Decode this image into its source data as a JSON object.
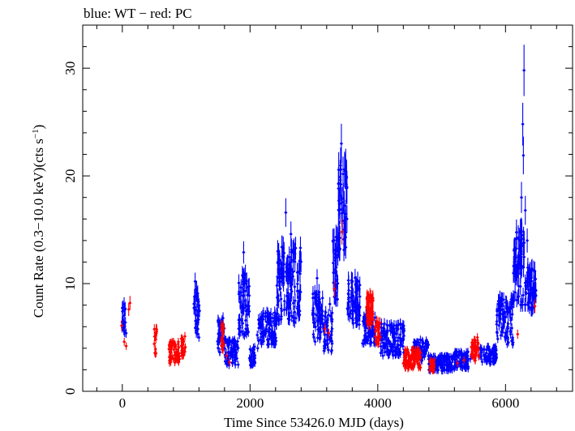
{
  "chart_data": {
    "type": "scatter",
    "title": "blue: WT − red: PC",
    "xlabel": "Time Since 53426.0 MJD (days)",
    "ylabel": "Count Rate (0.3−10.0 keV)(cts s",
    "ylabel_superscript": "−1",
    "ylabel_suffix": ")",
    "xlim": [
      -620,
      7050
    ],
    "ylim": [
      0,
      34
    ],
    "xticks": [
      0,
      2000,
      4000,
      6000
    ],
    "xtick_labels": [
      "0",
      "2000",
      "4000",
      "6000"
    ],
    "yticks": [
      0,
      10,
      20,
      30
    ],
    "ytick_labels": [
      "0",
      "10",
      "20",
      "30"
    ],
    "grid": false,
    "legend": "none (series identified in title text)",
    "series": [
      {
        "name": "WT",
        "color": "#0000ff",
        "points": [
          [
            0,
            6.5
          ],
          [
            10,
            7.8
          ],
          [
            20,
            6.2
          ],
          [
            60,
            5.4
          ],
          [
            1130,
            8.8
          ],
          [
            1140,
            10.2
          ],
          [
            1160,
            5.6
          ],
          [
            1200,
            5.0
          ],
          [
            1500,
            4.6
          ],
          [
            1530,
            5.8
          ],
          [
            1600,
            4.9
          ],
          [
            1700,
            3.5
          ],
          [
            1760,
            3.4
          ],
          [
            1830,
            5.3
          ],
          [
            1890,
            10.6
          ],
          [
            1900,
            12.9
          ],
          [
            1920,
            9.3
          ],
          [
            1960,
            7.6
          ],
          [
            2000,
            2.9
          ],
          [
            2120,
            4.0
          ],
          [
            2200,
            5.5
          ],
          [
            2300,
            6.6
          ],
          [
            2380,
            4.7
          ],
          [
            2470,
            10.5
          ],
          [
            2520,
            13.3
          ],
          [
            2560,
            16.6
          ],
          [
            2610,
            11.0
          ],
          [
            2640,
            14.6
          ],
          [
            2700,
            9.7
          ],
          [
            2760,
            7.0
          ],
          [
            3000,
            6.4
          ],
          [
            3050,
            10.5
          ],
          [
            3080,
            8.5
          ],
          [
            3110,
            5.5
          ],
          [
            3160,
            4.2
          ],
          [
            3250,
            8.1
          ],
          [
            3300,
            13.9
          ],
          [
            3350,
            11.5
          ],
          [
            3390,
            17.7
          ],
          [
            3410,
            19.9
          ],
          [
            3430,
            23.0
          ],
          [
            3460,
            17.9
          ],
          [
            3480,
            20.6
          ],
          [
            3500,
            16.0
          ],
          [
            3540,
            10.3
          ],
          [
            3580,
            8.7
          ],
          [
            3650,
            7.9
          ],
          [
            3710,
            6.2
          ],
          [
            3830,
            6.3
          ],
          [
            3920,
            6.0
          ],
          [
            4100,
            5.8
          ],
          [
            4200,
            3.8
          ],
          [
            4300,
            3.9
          ],
          [
            4400,
            5.1
          ],
          [
            4600,
            4.0
          ],
          [
            4700,
            4.5
          ],
          [
            4850,
            2.6
          ],
          [
            4950,
            2.5
          ],
          [
            5050,
            2.5
          ],
          [
            5150,
            2.4
          ],
          [
            5200,
            3.4
          ],
          [
            5320,
            2.7
          ],
          [
            5450,
            3.0
          ],
          [
            5600,
            3.3
          ],
          [
            5750,
            3.3
          ],
          [
            5820,
            3.8
          ],
          [
            5900,
            6.1
          ],
          [
            5950,
            8.5
          ],
          [
            6020,
            7.4
          ],
          [
            6080,
            5.3
          ],
          [
            6150,
            9.2
          ],
          [
            6200,
            11.9
          ],
          [
            6230,
            13.0
          ],
          [
            6250,
            18.0
          ],
          [
            6270,
            24.8
          ],
          [
            6280,
            21.9
          ],
          [
            6290,
            29.8
          ],
          [
            6310,
            16.8
          ],
          [
            6340,
            14.0
          ],
          [
            6380,
            11.1
          ],
          [
            6420,
            9.0
          ],
          [
            6460,
            9.4
          ]
        ]
      },
      {
        "name": "PC",
        "color": "#ff0000",
        "points": [
          [
            -10,
            6.1
          ],
          [
            30,
            4.6
          ],
          [
            60,
            4.2
          ],
          [
            100,
            7.6
          ],
          [
            120,
            8.2
          ],
          [
            500,
            4.4
          ],
          [
            520,
            5.2
          ],
          [
            530,
            5.8
          ],
          [
            750,
            3.6
          ],
          [
            800,
            4.6
          ],
          [
            850,
            3.0
          ],
          [
            880,
            2.8
          ],
          [
            950,
            4.0
          ],
          [
            980,
            5.1
          ],
          [
            1560,
            5.8
          ],
          [
            1590,
            4.4
          ],
          [
            1630,
            3.3
          ],
          [
            1680,
            2.7
          ],
          [
            3170,
            5.8
          ],
          [
            3230,
            5.4
          ],
          [
            3320,
            9.5
          ],
          [
            3440,
            14.8
          ],
          [
            3840,
            8.5
          ],
          [
            3870,
            6.8
          ],
          [
            3920,
            7.4
          ],
          [
            4000,
            5.7
          ],
          [
            4420,
            3.4
          ],
          [
            4470,
            2.6
          ],
          [
            4520,
            2.9
          ],
          [
            4560,
            3.8
          ],
          [
            4600,
            3.4
          ],
          [
            4640,
            2.2
          ],
          [
            4660,
            3.2
          ],
          [
            4820,
            2.3
          ],
          [
            4880,
            2.5
          ],
          [
            5250,
            2.6
          ],
          [
            5350,
            2.9
          ],
          [
            5480,
            3.4
          ],
          [
            5530,
            4.2
          ],
          [
            5560,
            5.0
          ],
          [
            6190,
            5.3
          ],
          [
            6460,
            7.9
          ]
        ]
      }
    ],
    "dense_segments": [
      {
        "series": "WT",
        "x0": -10,
        "x1": 50,
        "center": 6.5,
        "spread": 1.6
      },
      {
        "series": "WT",
        "x0": 1120,
        "x1": 1210,
        "center": 7.5,
        "spread": 2.2
      },
      {
        "series": "WT",
        "x0": 1490,
        "x1": 1600,
        "center": 5.2,
        "spread": 1.6
      },
      {
        "series": "WT",
        "x0": 1600,
        "x1": 1820,
        "center": 3.6,
        "spread": 1.2
      },
      {
        "series": "WT",
        "x0": 1820,
        "x1": 1990,
        "center": 8.0,
        "spread": 3.0
      },
      {
        "series": "WT",
        "x0": 1990,
        "x1": 2080,
        "center": 3.3,
        "spread": 0.9
      },
      {
        "series": "WT",
        "x0": 2110,
        "x1": 2420,
        "center": 5.8,
        "spread": 1.5
      },
      {
        "series": "WT",
        "x0": 2420,
        "x1": 2800,
        "center": 10.0,
        "spread": 3.6
      },
      {
        "series": "WT",
        "x0": 2980,
        "x1": 3150,
        "center": 7.0,
        "spread": 2.4
      },
      {
        "series": "WT",
        "x0": 3150,
        "x1": 3290,
        "center": 5.5,
        "spread": 2.0
      },
      {
        "series": "WT",
        "x0": 3290,
        "x1": 3380,
        "center": 11.5,
        "spread": 3.0
      },
      {
        "series": "WT",
        "x0": 3380,
        "x1": 3520,
        "center": 17.0,
        "spread": 4.0
      },
      {
        "series": "WT",
        "x0": 3520,
        "x1": 3720,
        "center": 8.5,
        "spread": 2.2
      },
      {
        "series": "WT",
        "x0": 3760,
        "x1": 3960,
        "center": 5.8,
        "spread": 1.4
      },
      {
        "series": "WT",
        "x0": 4040,
        "x1": 4420,
        "center": 4.8,
        "spread": 1.5
      },
      {
        "series": "WT",
        "x0": 4560,
        "x1": 4800,
        "center": 3.8,
        "spread": 1.0
      },
      {
        "series": "WT",
        "x0": 4800,
        "x1": 5180,
        "center": 2.6,
        "spread": 0.7
      },
      {
        "series": "WT",
        "x0": 5180,
        "x1": 5420,
        "center": 2.9,
        "spread": 0.8
      },
      {
        "series": "WT",
        "x0": 5600,
        "x1": 5860,
        "center": 3.4,
        "spread": 0.8
      },
      {
        "series": "WT",
        "x0": 5860,
        "x1": 6120,
        "center": 6.5,
        "spread": 2.2
      },
      {
        "series": "WT",
        "x0": 6120,
        "x1": 6320,
        "center": 11.5,
        "spread": 3.5
      },
      {
        "series": "WT",
        "x0": 6320,
        "x1": 6480,
        "center": 9.5,
        "spread": 2.0
      },
      {
        "series": "PC",
        "x0": 500,
        "x1": 540,
        "center": 4.6,
        "spread": 1.4
      },
      {
        "series": "PC",
        "x0": 730,
        "x1": 900,
        "center": 3.6,
        "spread": 1.0
      },
      {
        "series": "PC",
        "x0": 920,
        "x1": 990,
        "center": 4.0,
        "spread": 1.0
      },
      {
        "series": "PC",
        "x0": 1540,
        "x1": 1600,
        "center": 5.0,
        "spread": 1.2
      },
      {
        "series": "PC",
        "x0": 3820,
        "x1": 3930,
        "center": 7.5,
        "spread": 1.4
      },
      {
        "series": "PC",
        "x0": 3960,
        "x1": 4040,
        "center": 5.5,
        "spread": 1.2
      },
      {
        "series": "PC",
        "x0": 4400,
        "x1": 4670,
        "center": 3.0,
        "spread": 0.9
      },
      {
        "series": "PC",
        "x0": 4810,
        "x1": 4890,
        "center": 2.4,
        "spread": 0.5
      },
      {
        "series": "PC",
        "x0": 5460,
        "x1": 5580,
        "center": 3.8,
        "spread": 1.0
      }
    ]
  }
}
